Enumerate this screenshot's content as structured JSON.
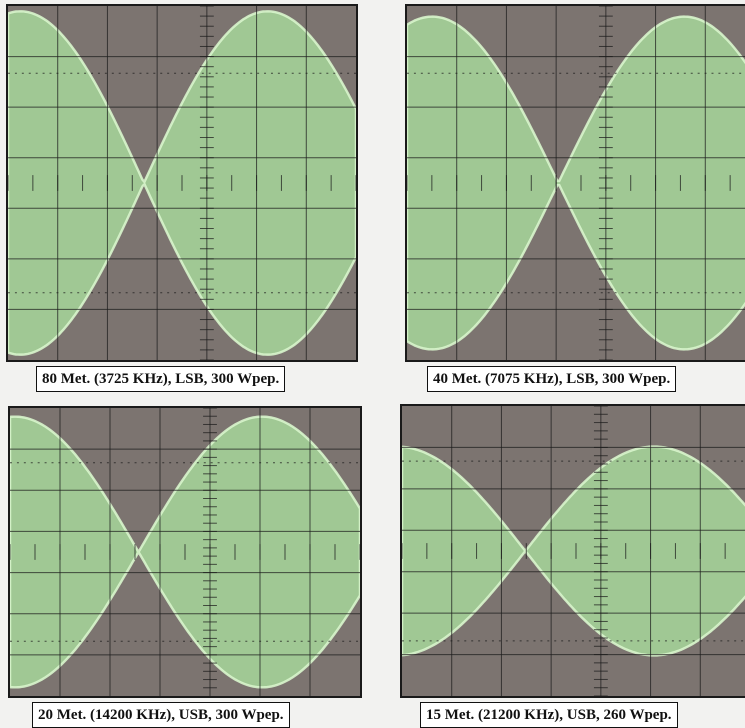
{
  "colors": {
    "screen_background": "#7c7470",
    "trace": "#a7d79a",
    "trace_edge": "#d8f5cc",
    "graticule": "#1c1c1c",
    "caption_background": "#ffffff",
    "caption_text": "#111111"
  },
  "panels": [
    {
      "caption": "80 Met. (3725 KHz), LSB, 300 Wpep.",
      "envelope": {
        "type": "two-tone",
        "lobes_visible": 3,
        "peak_fraction": 0.96,
        "null_fraction": 0.0
      }
    },
    {
      "caption": "40 Met. (7075 KHz), LSB, 300 Wpep.",
      "envelope": {
        "type": "two-tone",
        "lobes_visible": 3,
        "peak_fraction": 0.93,
        "null_fraction": 0.0
      }
    },
    {
      "caption": "20 Met. (14200 KHz), USB, 300 Wpep.",
      "envelope": {
        "type": "two-tone",
        "lobes_visible": 3,
        "peak_fraction": 0.93,
        "null_fraction": 0.0
      }
    },
    {
      "caption": "15 Met. (21200 KHz), USB, 260 Wpep.",
      "envelope": {
        "type": "two-tone",
        "lobes_visible": 3,
        "peak_fraction": 0.72,
        "null_fraction": 0.0
      }
    }
  ]
}
